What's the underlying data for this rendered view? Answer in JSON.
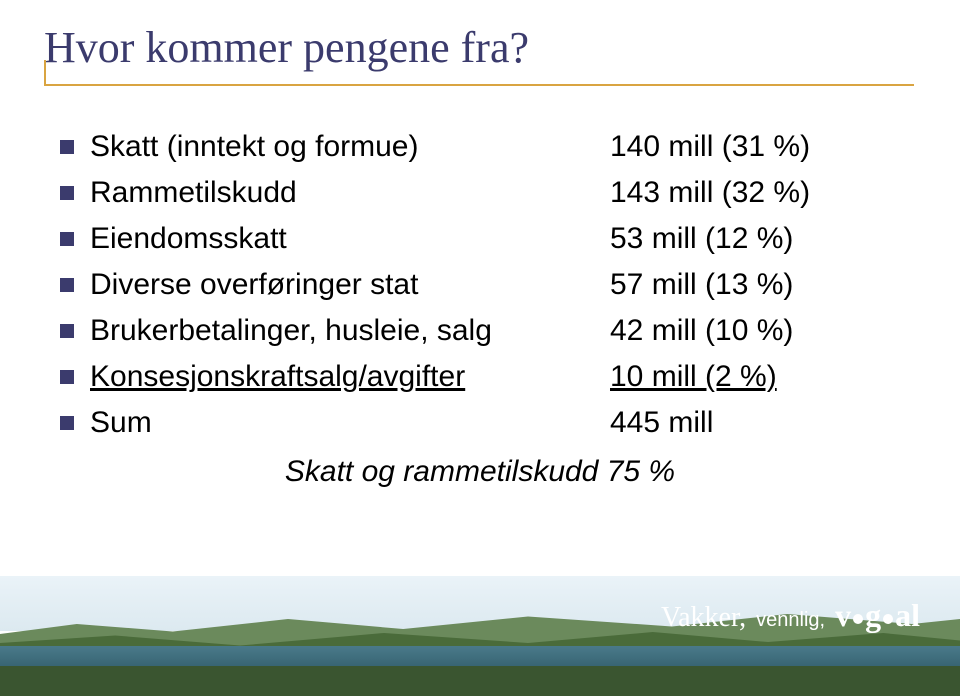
{
  "title": "Hvor kommer pengene fra?",
  "rows": [
    {
      "label": "Skatt (inntekt og formue)",
      "value": "140 mill (31 %)",
      "underline_label": false,
      "underline_value": false
    },
    {
      "label": "Rammetilskudd",
      "value": "143 mill (32 %)",
      "underline_label": false,
      "underline_value": false
    },
    {
      "label": "Eiendomsskatt",
      "value": "53 mill  (12 %)",
      "underline_label": false,
      "underline_value": false
    },
    {
      "label": "Diverse overføringer stat",
      "value": "57 mill  (13 %)",
      "underline_label": false,
      "underline_value": false
    },
    {
      "label": "Brukerbetalinger, husleie, salg",
      "value": "42 mill   (10 %)",
      "underline_label": false,
      "underline_value": false
    },
    {
      "label": "Konsesjonskraftsalg/avgifter",
      "value": "10 mill    (2 %)",
      "underline_label": true,
      "underline_value": true
    },
    {
      "label": "Sum",
      "value": "445 mill",
      "underline_label": false,
      "underline_value": false
    }
  ],
  "summary": "Skatt og rammetilskudd 75 %",
  "footer": {
    "word1": "Vakker,",
    "word2": "vennlig,",
    "logo_prefix": "v",
    "logo_suffix": "g",
    "logo_mid": "a",
    "logo_end": "l"
  },
  "colors": {
    "title": "#3b3b6d",
    "accent": "#d9a441",
    "bullet": "#3b3b6d",
    "text": "#000000"
  }
}
